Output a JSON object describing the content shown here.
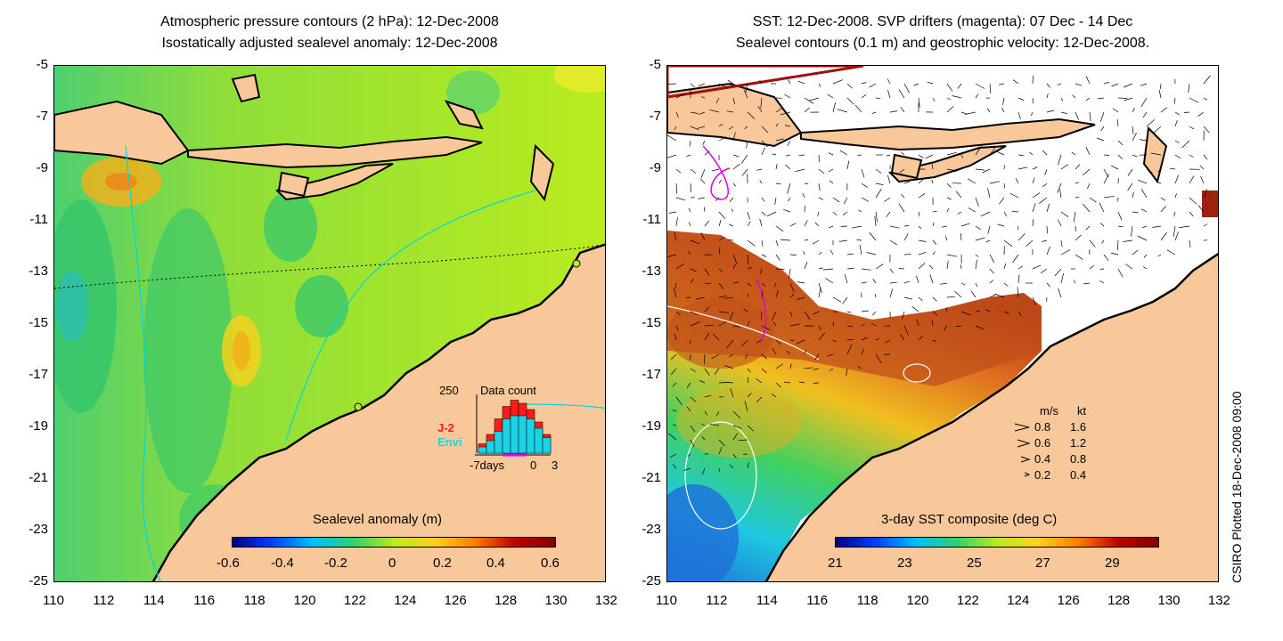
{
  "left_panel": {
    "title_line1": "Atmospheric pressure contours (2 hPa): 12-Dec-2008",
    "title_line2": "Isostatically adjusted sealevel anomaly: 12-Dec-2008",
    "colorbar_title": "Sealevel anomaly (m)",
    "colorbar_ticks": [
      "-0.6",
      "-0.4",
      "-0.2",
      "0",
      "0.2",
      "0.4",
      "0.6"
    ],
    "inset": {
      "title": "Data count",
      "ymax_label": "250",
      "series_j2": "J-2",
      "series_envi": "Envi",
      "x_left": "-7days",
      "x_mid": "0",
      "x_right": "3",
      "envi_heights": [
        0.1,
        0.2,
        0.35,
        0.55,
        0.6,
        0.6,
        0.55,
        0.4,
        0.25
      ],
      "j2_heights": [
        0.15,
        0.3,
        0.55,
        0.75,
        0.85,
        0.8,
        0.7,
        0.5,
        0.3
      ]
    }
  },
  "right_panel": {
    "title_line1": "SST: 12-Dec-2008. SVP drifters (magenta): 07 Dec - 14 Dec",
    "title_line2": "Sealevel contours (0.1 m) and geostrophic velocity: 12-Dec-2008.",
    "colorbar_title": "3-day SST composite (deg C)",
    "colorbar_ticks": [
      "21",
      "23",
      "25",
      "27",
      "29"
    ],
    "legend": {
      "header_ms": "m/s",
      "header_kt": "kt",
      "rows": [
        {
          "ms": "0.8",
          "kt": "1.6"
        },
        {
          "ms": "0.6",
          "kt": "1.2"
        },
        {
          "ms": "0.4",
          "kt": "0.8"
        },
        {
          "ms": "0.2",
          "kt": "0.4"
        }
      ]
    },
    "side_note": "CSIRO Plotted 18-Dec-2008 09:00"
  },
  "axes": {
    "y_ticks": [
      "-5",
      "-7",
      "-9",
      "-11",
      "-13",
      "-15",
      "-17",
      "-19",
      "-21",
      "-23",
      "-25"
    ],
    "x_ticks": [
      "110",
      "112",
      "114",
      "116",
      "118",
      "120",
      "122",
      "124",
      "126",
      "128",
      "130",
      "132"
    ]
  },
  "colors": {
    "land": "#f9c89a",
    "ocean_green": "#a9e820",
    "sst_warm": "#c0401a",
    "sst_cool": "#1e7fd8"
  }
}
